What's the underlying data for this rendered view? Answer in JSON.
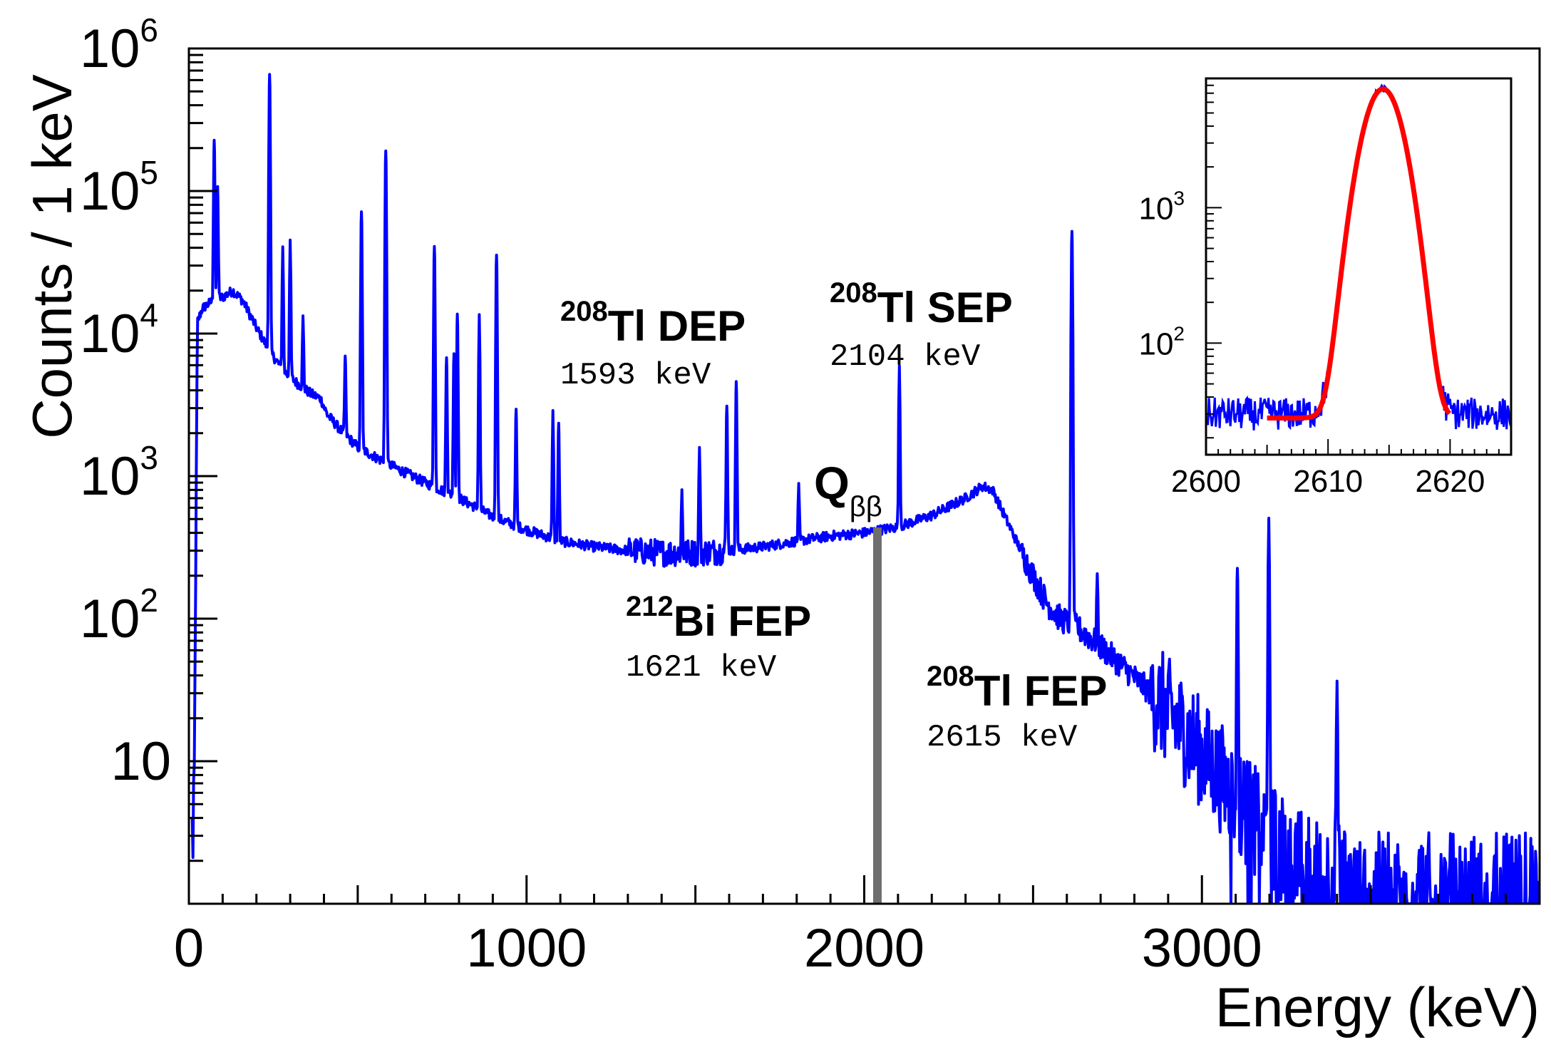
{
  "chart_data": {
    "type": "line",
    "xlabel": "Energy (keV)",
    "ylabel": "Counts / 1 keV",
    "xlim": [
      0,
      4000
    ],
    "ylim": [
      1,
      1000000
    ],
    "yscale": "log",
    "x_ticks": [
      "0",
      "1000",
      "2000",
      "3000"
    ],
    "y_ticks": [
      {
        "base": "10",
        "exp": "6",
        "value": 1000000
      },
      {
        "base": "10",
        "exp": "5",
        "value": 100000
      },
      {
        "base": "10",
        "exp": "4",
        "value": 10000
      },
      {
        "base": "10",
        "exp": "3",
        "value": 1000
      },
      {
        "base": "10",
        "exp": "2",
        "value": 100
      },
      {
        "base": "10",
        "exp": "",
        "value": 10
      }
    ],
    "series_color": "#0000ff",
    "continuum": [
      [
        15,
        3
      ],
      [
        25,
        12000
      ],
      [
        40,
        15000
      ],
      [
        70,
        17000
      ],
      [
        100,
        18000
      ],
      [
        130,
        20000
      ],
      [
        160,
        17000
      ],
      [
        200,
        11000
      ],
      [
        240,
        7500
      ],
      [
        280,
        5500
      ],
      [
        320,
        4500
      ],
      [
        360,
        3800
      ],
      [
        390,
        3500
      ],
      [
        410,
        2700
      ],
      [
        450,
        2100
      ],
      [
        500,
        1600
      ],
      [
        580,
        1250
      ],
      [
        700,
        900
      ],
      [
        800,
        700
      ],
      [
        900,
        520
      ],
      [
        1000,
        420
      ],
      [
        1100,
        350
      ],
      [
        1200,
        320
      ],
      [
        1300,
        300
      ],
      [
        1400,
        290
      ],
      [
        1500,
        290
      ],
      [
        1600,
        300
      ],
      [
        1700,
        320
      ],
      [
        1800,
        350
      ],
      [
        1900,
        380
      ],
      [
        2000,
        400
      ],
      [
        2100,
        440
      ],
      [
        2200,
        530
      ],
      [
        2300,
        700
      ],
      [
        2350,
        850
      ],
      [
        2380,
        800
      ],
      [
        2420,
        500
      ],
      [
        2480,
        250
      ],
      [
        2540,
        130
      ],
      [
        2580,
        100
      ],
      [
        2620,
        90
      ],
      [
        2680,
        70
      ],
      [
        2750,
        50
      ],
      [
        2850,
        30
      ],
      [
        2950,
        16
      ],
      [
        3050,
        8
      ],
      [
        3150,
        4
      ],
      [
        3250,
        2.2
      ],
      [
        3350,
        1.6
      ],
      [
        3500,
        1.3
      ],
      [
        4000,
        1.3
      ]
    ],
    "peaks": [
      {
        "energy": 75,
        "counts": 210000
      },
      {
        "energy": 85,
        "counts": 90000
      },
      {
        "energy": 239,
        "counts": 650000
      },
      {
        "energy": 278,
        "counts": 35000
      },
      {
        "energy": 300,
        "counts": 40000
      },
      {
        "energy": 338,
        "counts": 9000
      },
      {
        "energy": 463,
        "counts": 5000
      },
      {
        "energy": 511,
        "counts": 70000
      },
      {
        "energy": 583,
        "counts": 190000
      },
      {
        "energy": 727,
        "counts": 40000
      },
      {
        "energy": 763,
        "counts": 6000
      },
      {
        "energy": 785,
        "counts": 6500
      },
      {
        "energy": 795,
        "counts": 13000
      },
      {
        "energy": 860,
        "counts": 13000
      },
      {
        "energy": 911,
        "counts": 35000
      },
      {
        "energy": 969,
        "counts": 2500
      },
      {
        "energy": 1078,
        "counts": 2500
      },
      {
        "energy": 1095,
        "counts": 2000
      },
      {
        "energy": 1460,
        "counts": 500
      },
      {
        "energy": 1512,
        "counts": 1300
      },
      {
        "energy": 1593,
        "counts": 2800
      },
      {
        "energy": 1621,
        "counts": 4300
      },
      {
        "energy": 1806,
        "counts": 520
      },
      {
        "energy": 2104,
        "counts": 5500
      },
      {
        "energy": 2615,
        "counts": 52000
      },
      {
        "energy": 2690,
        "counts": 140
      },
      {
        "energy": 3105,
        "counts": 220
      },
      {
        "energy": 3198,
        "counts": 500
      },
      {
        "energy": 3400,
        "counts": 35
      }
    ],
    "annotations": [
      {
        "isotope_mass": "208",
        "label": "Tl DEP",
        "energy_text": "1593 keV"
      },
      {
        "isotope_mass": "208",
        "label": "Tl SEP",
        "energy_text": "2104 keV"
      },
      {
        "isotope_mass": "212",
        "label": "Bi FEP",
        "energy_text": "1621 keV"
      },
      {
        "isotope_mass": "208",
        "label": "Tl FEP",
        "energy_text": "2615 keV"
      }
    ],
    "qbb": {
      "label": "Q",
      "subscript": "ββ",
      "energy": 2039,
      "color": "#6e6e6e"
    },
    "inset": {
      "xlim": [
        2600,
        2625
      ],
      "ylim": [
        15,
        9000
      ],
      "x_ticks": [
        "2600",
        "2610",
        "2620"
      ],
      "y_ticks": [
        {
          "base": "10",
          "exp": "3",
          "value": 1000
        },
        {
          "base": "10",
          "exp": "2",
          "value": 100
        }
      ],
      "series_color": "#0000ff",
      "fit_color": "#ff0000",
      "peak_center": 2614.5,
      "peak_height": 7500,
      "peak_sigma": 1.35,
      "background": 28,
      "fit_range": [
        2605,
        2620
      ]
    }
  }
}
